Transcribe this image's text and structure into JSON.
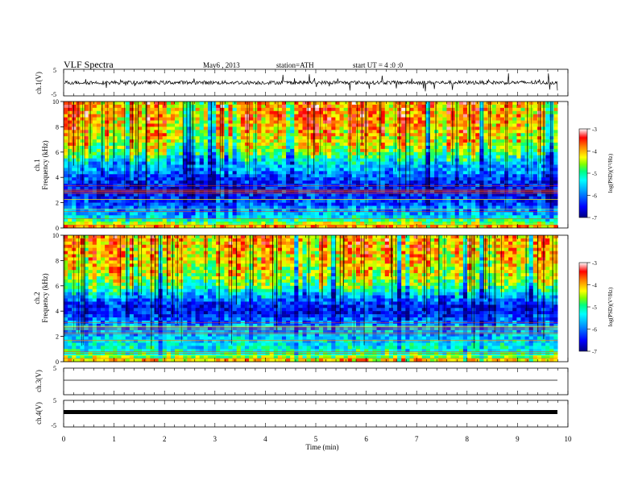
{
  "header": {
    "title": "VLF Spectra",
    "date": "May6 , 2013",
    "station": "station=ATH",
    "start": "start UT = 4 :0 :0"
  },
  "colors": {
    "scale_stops": [
      "#000080",
      "#0000ff",
      "#00a0ff",
      "#00ffff",
      "#00ff80",
      "#80ff00",
      "#ffff00",
      "#ff8000",
      "#ff0000",
      "#ffffff"
    ],
    "trace": "#000000"
  },
  "chart_data": [
    {
      "type": "line",
      "panel": "ch1-waveform",
      "ylabel": "ch.1(V)",
      "ylim": [
        -5,
        5
      ],
      "yticks": [
        "5",
        "-5"
      ],
      "xlim": [
        0,
        10
      ],
      "trace_extent_min": [
        0,
        9.8
      ],
      "description_level": "noisy waveform around 0 V with spikes to about ±3 V"
    },
    {
      "type": "heatmap",
      "panel": "ch1-spectrogram",
      "ylabel": "ch.1\nFrequency (kHz)",
      "ylabel_lines": [
        "ch.1",
        "Frequency (kHz)"
      ],
      "ylim": [
        0,
        10
      ],
      "yticks": [
        "0",
        "2",
        "4",
        "6",
        "8",
        "10"
      ],
      "xlim": [
        0,
        10
      ],
      "colorbar_label": "log(PSD)(V²/Hz)",
      "colorbar_range": [
        -7,
        -3
      ],
      "colorbar_ticks": [
        "-3",
        "-4",
        "-5",
        "-6",
        "-7"
      ],
      "profile": {
        "freq_khz": [
          0,
          0.5,
          1,
          2,
          3,
          3.5,
          4,
          4.5,
          5,
          5.5,
          6,
          7,
          8,
          9,
          10
        ],
        "log_psd": [
          -3.6,
          -4.8,
          -5.6,
          -6.2,
          -6.5,
          -6.4,
          -6.2,
          -5.8,
          -5.6,
          -5.2,
          -4.6,
          -4.2,
          -4.0,
          -3.9,
          -3.9
        ]
      }
    },
    {
      "type": "heatmap",
      "panel": "ch2-spectrogram",
      "ylabel_lines": [
        "ch.2",
        "Frequency (kHz)"
      ],
      "ylim": [
        0,
        10
      ],
      "yticks": [
        "0",
        "2",
        "4",
        "6",
        "8",
        "10"
      ],
      "xlim": [
        0,
        10
      ],
      "colorbar_label": "log(PSD)(V²/Hz)",
      "colorbar_range": [
        -7,
        -3
      ],
      "colorbar_ticks": [
        "-3",
        "-4",
        "-5",
        "-6",
        "-7"
      ],
      "profile": {
        "freq_khz": [
          0,
          0.5,
          1,
          2,
          3,
          3.5,
          4,
          4.5,
          5,
          5.5,
          6,
          7,
          8,
          9,
          10
        ],
        "log_psd": [
          -3.8,
          -4.9,
          -5.3,
          -5.6,
          -5.9,
          -6.2,
          -6.5,
          -6.4,
          -5.9,
          -5.4,
          -4.8,
          -4.4,
          -4.2,
          -4.0,
          -4.0
        ]
      }
    },
    {
      "type": "line",
      "panel": "ch3-waveform",
      "ylabel": "ch.3(V)",
      "ylim": [
        -5,
        5
      ],
      "yticks": [
        "5"
      ],
      "xlim": [
        0,
        10
      ],
      "level_v": 0
    },
    {
      "type": "line",
      "panel": "ch4-waveform",
      "ylabel": "ch.4(V)",
      "ylim": [
        -5,
        5
      ],
      "yticks": [
        "5",
        "-5"
      ],
      "xlim": [
        0,
        10
      ],
      "level_v": 0
    }
  ],
  "xaxis": {
    "label": "Time (min)",
    "ticks": [
      "0",
      "1",
      "2",
      "3",
      "4",
      "5",
      "6",
      "7",
      "8",
      "9",
      "10"
    ]
  }
}
